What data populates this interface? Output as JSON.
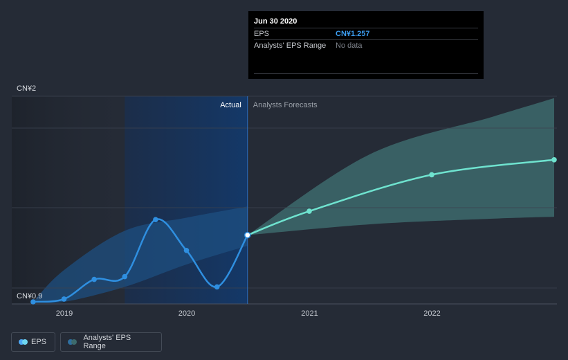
{
  "chart_data": {
    "type": "line",
    "y_axis": {
      "label_top": "CN¥2",
      "label_bottom": "CN¥0.9",
      "ylim": [
        0.9,
        2.0
      ]
    },
    "x_ticks": [
      "2019",
      "2020",
      "2021",
      "2022"
    ],
    "sections": {
      "actual": "Actual",
      "forecast": "Analysts Forecasts"
    },
    "colors": {
      "eps_actual": "#2f8fe0",
      "eps_forecast": "#6fe3cf",
      "past_band": "#1e4f80",
      "forecast_band": "#3d6a6c",
      "highlight": "#1a2d4d"
    },
    "series": [
      {
        "name": "EPS",
        "points": [
          {
            "x": "2018-09-30",
            "y": 0.9
          },
          {
            "x": "2018-12-31",
            "y": 0.915
          },
          {
            "x": "2019-03-31",
            "y": 1.02
          },
          {
            "x": "2019-06-30",
            "y": 1.035
          },
          {
            "x": "2019-09-30",
            "y": 1.34
          },
          {
            "x": "2019-12-31",
            "y": 1.175
          },
          {
            "x": "2020-03-31",
            "y": 0.98
          },
          {
            "x": "2020-06-30",
            "y": 1.257
          }
        ]
      },
      {
        "name": "EPS forecast",
        "points": [
          {
            "x": "2020-06-30",
            "y": 1.257
          },
          {
            "x": "2020-12-31",
            "y": 1.385
          },
          {
            "x": "2021-12-31",
            "y": 1.58
          },
          {
            "x": "2022-12-31",
            "y": 1.66
          }
        ]
      },
      {
        "name": "Analysts' EPS Range",
        "points": [
          {
            "x": "2018-09-30",
            "low": 0.9,
            "high": 0.9
          },
          {
            "x": "2018-12-31",
            "low": 0.9,
            "high": 1.07
          },
          {
            "x": "2019-06-30",
            "low": 0.98,
            "high": 1.28
          },
          {
            "x": "2019-12-31",
            "low": 1.1,
            "high": 1.35
          },
          {
            "x": "2020-06-30",
            "low": 1.2,
            "high": 1.41
          }
        ]
      },
      {
        "name": "Analysts' EPS Range (forecast)",
        "points": [
          {
            "x": "2020-06-30",
            "low": 1.257,
            "high": 1.257
          },
          {
            "x": "2021-06-30",
            "low": 1.315,
            "high": 1.69
          },
          {
            "x": "2022-06-30",
            "low": 1.345,
            "high": 1.89
          },
          {
            "x": "2022-12-31",
            "low": 1.355,
            "high": 1.99
          }
        ]
      }
    ],
    "grid": true
  },
  "tooltip": {
    "date": "Jun 30 2020",
    "eps_label": "EPS",
    "eps_value": "CN¥1.257",
    "range_label": "Analysts' EPS Range",
    "range_value": "No data"
  },
  "legend": {
    "eps": "EPS",
    "range": "Analysts' EPS Range"
  }
}
